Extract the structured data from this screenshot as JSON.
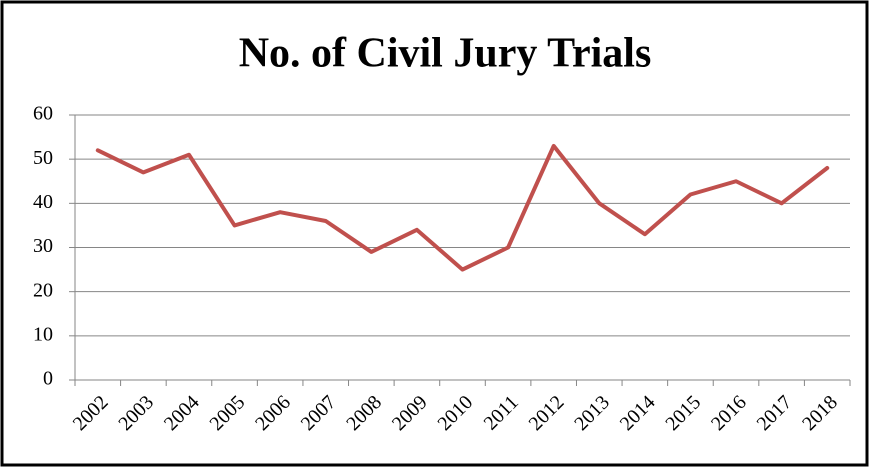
{
  "chart_data": {
    "type": "line",
    "title": "No. of Civil Jury Trials",
    "categories": [
      "2002",
      "2003",
      "2004",
      "2005",
      "2006",
      "2007",
      "2008",
      "2009",
      "2010",
      "2011",
      "2012",
      "2013",
      "2014",
      "2015",
      "2016",
      "2017",
      "2018"
    ],
    "values": [
      52,
      47,
      51,
      35,
      38,
      36,
      29,
      34,
      25,
      30,
      53,
      40,
      33,
      42,
      45,
      40,
      48
    ],
    "color": "#c0504d",
    "ylim": [
      0,
      60
    ],
    "yticks": [
      0,
      10,
      20,
      30,
      40,
      50,
      60
    ],
    "grid": true
  }
}
